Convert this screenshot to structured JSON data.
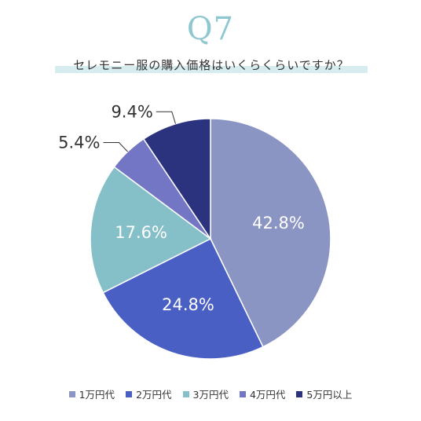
{
  "header": {
    "q_label": "Q7",
    "question": "セレモニー服の購入価格はいくらくらいですか？"
  },
  "chart_data": {
    "type": "pie",
    "title": "セレモニー服の購入価格はいくらくらいですか？",
    "categories": [
      "1万円代",
      "2万円代",
      "3万円代",
      "4万円代",
      "5万円以上"
    ],
    "values": [
      42.8,
      24.8,
      17.6,
      5.4,
      9.4
    ],
    "value_labels": [
      "42.8%",
      "24.8%",
      "17.6%",
      "5.4%",
      "9.4%"
    ],
    "colors": [
      "#8b95c4",
      "#4a5fc4",
      "#85bfc8",
      "#7276c4",
      "#2b337f"
    ],
    "start": "12 o'clock",
    "direction": "clockwise",
    "legend_position": "bottom",
    "label_style": [
      "inside",
      "inside",
      "inside",
      "outside-callout",
      "outside-callout"
    ]
  }
}
